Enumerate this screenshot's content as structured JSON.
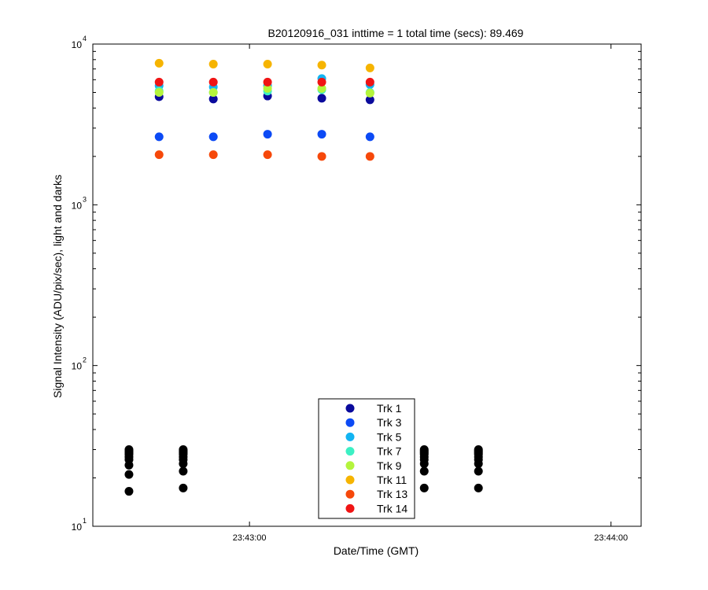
{
  "chart_data": {
    "type": "scatter",
    "title": "B20120916_031 inttime = 1 total time (secs): 89.469",
    "xlabel": "Date/Time (GMT)",
    "ylabel": "Signal Intensity (ADU/pix/sec), light and darks",
    "yscale": "log",
    "ylim": [
      10,
      10000
    ],
    "xlim": [
      "23:42:34",
      "23:44:05"
    ],
    "grid": false,
    "legend_position": "bottom-center",
    "x_tick_labels": [
      "23:43:00",
      "23:44:00"
    ],
    "y_tick_labels": [
      {
        "base": "10",
        "exp": "1"
      },
      {
        "base": "10",
        "exp": "2"
      },
      {
        "base": "10",
        "exp": "3"
      },
      {
        "base": "10",
        "exp": "4"
      }
    ],
    "series": [
      {
        "name": "Trk 1",
        "color": "#0a0a9c",
        "x": [
          "23:42:45",
          "23:42:54",
          "23:43:03",
          "23:43:12",
          "23:43:20"
        ],
        "y": [
          4700,
          4550,
          4750,
          4600,
          4500
        ]
      },
      {
        "name": "Trk 3",
        "color": "#0c4af5",
        "x": [
          "23:42:45",
          "23:42:54",
          "23:43:03",
          "23:43:12",
          "23:43:20"
        ],
        "y": [
          2650,
          2650,
          2750,
          2750,
          2650
        ]
      },
      {
        "name": "Trk 5",
        "color": "#12b4f2",
        "x": [
          "23:42:45",
          "23:42:54",
          "23:43:03",
          "23:43:12",
          "23:43:20"
        ],
        "y": [
          5500,
          5400,
          5500,
          6100,
          5600
        ]
      },
      {
        "name": "Trk 7",
        "color": "#3cf0c4",
        "x": [
          "23:42:45",
          "23:42:54",
          "23:43:03",
          "23:43:12",
          "23:43:20"
        ],
        "y": [
          5100,
          5000,
          5100,
          5200,
          5000
        ]
      },
      {
        "name": "Trk 9",
        "color": "#b4f43c",
        "x": [
          "23:42:45",
          "23:42:54",
          "23:43:03",
          "23:43:12",
          "23:43:20"
        ],
        "y": [
          5000,
          5000,
          5300,
          5300,
          4950
        ]
      },
      {
        "name": "Trk 11",
        "color": "#f6b400",
        "x": [
          "23:42:45",
          "23:42:54",
          "23:43:03",
          "23:43:12",
          "23:43:20"
        ],
        "y": [
          7600,
          7500,
          7500,
          7400,
          7100
        ]
      },
      {
        "name": "Trk 13",
        "color": "#f6480a",
        "x": [
          "23:42:45",
          "23:42:54",
          "23:43:03",
          "23:43:12",
          "23:43:20"
        ],
        "y": [
          2050,
          2050,
          2050,
          2000,
          2000
        ]
      },
      {
        "name": "Trk 14",
        "color": "#f01414",
        "x": [
          "23:42:45",
          "23:42:54",
          "23:43:03",
          "23:43:12",
          "23:43:20"
        ],
        "y": [
          5800,
          5800,
          5800,
          5800,
          5800
        ]
      }
    ],
    "dark_series": {
      "color": "#000000",
      "x": [
        "23:42:40",
        "23:42:49",
        "23:43:29",
        "23:43:38"
      ],
      "y": [
        [
          16.5,
          21,
          24,
          26,
          27,
          28,
          28.5,
          29,
          29.5,
          30
        ],
        [
          17.3,
          22,
          24.5,
          26,
          27,
          28,
          28.5,
          29,
          29.5,
          30
        ],
        [
          17.3,
          22,
          24.5,
          26,
          27,
          28,
          28.5,
          29,
          29.5,
          30
        ],
        [
          17.3,
          22,
          24.5,
          26,
          27,
          28,
          28.5,
          29,
          29.5,
          30
        ]
      ]
    }
  }
}
